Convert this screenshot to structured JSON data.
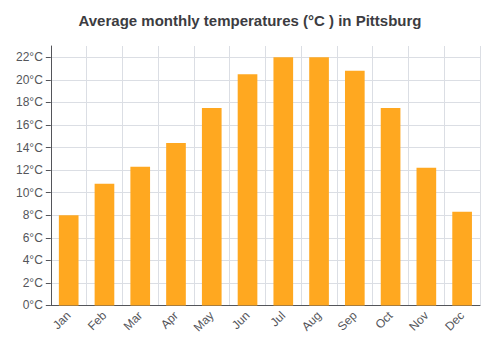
{
  "chart_data": {
    "type": "bar",
    "title": "Average monthly temperatures (°C ) in Pittsburg",
    "categories": [
      "Jan",
      "Feb",
      "Mar",
      "Apr",
      "May",
      "Jun",
      "Jul",
      "Aug",
      "Sep",
      "Oct",
      "Nov",
      "Dec"
    ],
    "values": [
      8.0,
      10.8,
      12.3,
      14.4,
      17.5,
      20.5,
      22.0,
      22.0,
      20.8,
      17.5,
      12.2,
      8.3
    ],
    "color": "#FFA820",
    "ylim": [
      0,
      23
    ],
    "yticks": [
      {
        "value": 0,
        "label": "0°C"
      },
      {
        "value": 2,
        "label": "2°C"
      },
      {
        "value": 4,
        "label": "4°C"
      },
      {
        "value": 6,
        "label": "6°C"
      },
      {
        "value": 8,
        "label": "8°C"
      },
      {
        "value": 10,
        "label": "10°C"
      },
      {
        "value": 12,
        "label": "12°C"
      },
      {
        "value": 14,
        "label": "14°C"
      },
      {
        "value": 16,
        "label": "16°C"
      },
      {
        "value": 18,
        "label": "18°C"
      },
      {
        "value": 20,
        "label": "20°C"
      },
      {
        "value": 22,
        "label": "22°C"
      }
    ],
    "grid": true
  }
}
